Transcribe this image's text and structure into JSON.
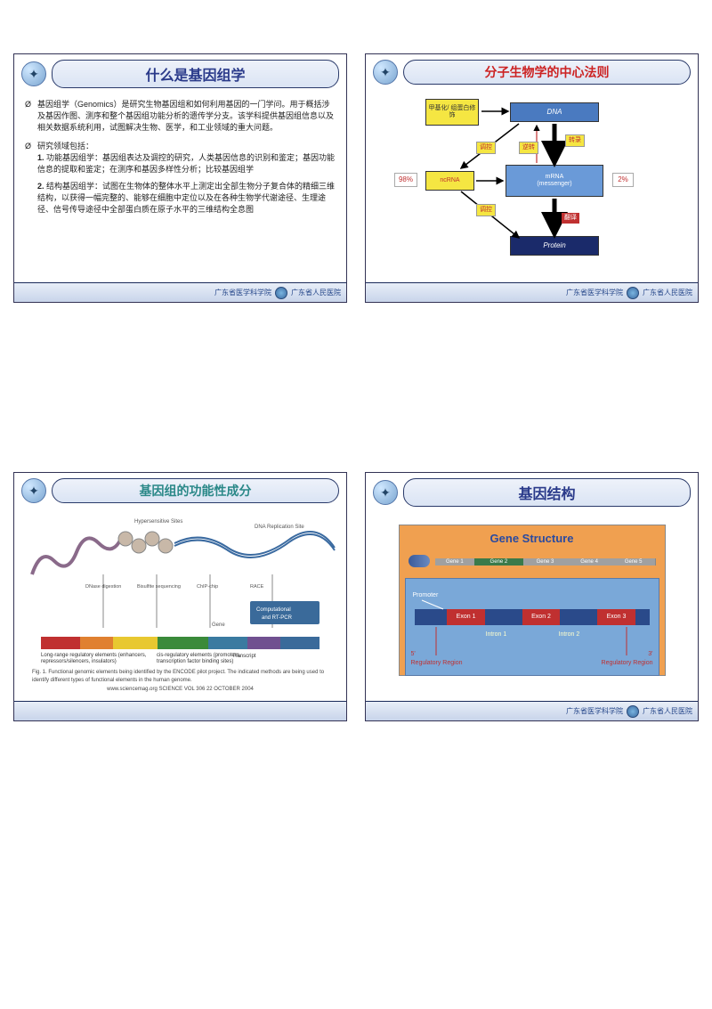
{
  "slides": [
    {
      "title": "什么是基因组学",
      "title_class": "title-blue",
      "body": {
        "p1_mark": "Ø",
        "p1": "基因组学（Genomics）是研究生物基因组和如何利用基因的一门学问。用于概括涉及基因作图、测序和整个基因组功能分析的遗传学分支。该学科提供基因组信息以及相关数据系统利用，试图解决生物、医学，和工业领域的重大问题。",
        "p2_mark": "Ø",
        "p2": "研究领域包括：",
        "li1_num": "1.",
        "li1": "功能基因组学：基因组表达及调控的研究，人类基因信息的识别和鉴定；基因功能信息的提取和鉴定；在测序和基因多样性分析；比较基因组学",
        "li2_num": "2.",
        "li2": "结构基因组学：试图在生物体的整体水平上测定出全部生物分子复合体的精细三维结构，以获得一幅完整的、能够在细胞中定位以及在各种生物学代谢途径、生理途径、信号传导途径中全部蛋白质在原子水平的三维结构全息图"
      },
      "footer": {
        "org": "广东省医学科学院",
        "hosp": "广东省人民医院"
      }
    },
    {
      "title": "分子生物学的中心法则",
      "title_class": "title-red",
      "dogma": {
        "meth": "甲基化/\n组蛋白修饰",
        "dna": "DNA",
        "ncrna": "ncRNA",
        "mrna_l1": "mRNA",
        "mrna_l2": "(messenger)",
        "protein": "Protein",
        "pct98": "98%",
        "pct2": "2%",
        "lbl_transcribe": "转录",
        "lbl_reverse": "逆转",
        "lbl_regulate": "调控",
        "lbl_regulate2": "调控",
        "lbl_translate": "翻译"
      },
      "footer": {
        "org": "广东省医学科学院",
        "hosp": "广东省人民医院"
      }
    },
    {
      "title": "基因组的功能性成分",
      "title_class": "title-teal",
      "func": {
        "track_colors": [
          "#c03030",
          "#e08030",
          "#e8c830",
          "#3a8a3a",
          "#3a7aa0",
          "#705090",
          "#3a6a9a"
        ],
        "track_widths": [
          14,
          12,
          16,
          18,
          14,
          12,
          14
        ],
        "caption_line1": "Fig. 1. Functional genomic elements being identified by the ENCODE pilot project. The indicated methods are being used to identify different types of functional elements in the human genome.",
        "source": "www.sciencemag.org    SCIENCE    VOL 306    22 OCTOBER 2004",
        "labels": {
          "long": "Long-range regulatory elements\n(enhancers, repressors/silencers, insulators)",
          "cis": "cis-regulatory elements\n(promoters, transcription\nfactor binding sites)",
          "transcript": "Transcript",
          "computational": "Computational\nand RT-PCR"
        }
      },
      "footer": {
        "org": "",
        "hosp": ""
      }
    },
    {
      "title": "基因结构",
      "title_class": "title-blue",
      "gene": {
        "heading": "Gene Structure",
        "topSegs": [
          {
            "c": "#a0a0a0",
            "w": 18,
            "t": "Gene 1"
          },
          {
            "c": "#3a7a4a",
            "w": 22,
            "t": "Gene 2"
          },
          {
            "c": "#a0a0a0",
            "w": 20,
            "t": "Gene 3"
          },
          {
            "c": "#a0a0a0",
            "w": 20,
            "t": "Gene 4"
          },
          {
            "c": "#a0a0a0",
            "w": 20,
            "t": "Gene 5"
          }
        ],
        "promoter": "Promoter",
        "exon1": "Exon 1",
        "exon2": "Exon 2",
        "exon3": "Exon 3",
        "intron1": "Intron 1",
        "intron2": "Intron 2",
        "reg5": "5'\nRegulatory Region",
        "reg3": "3'\nRegulatory Region"
      },
      "footer": {
        "org": "广东省医学科学院",
        "hosp": "广东省人民医院"
      }
    }
  ]
}
